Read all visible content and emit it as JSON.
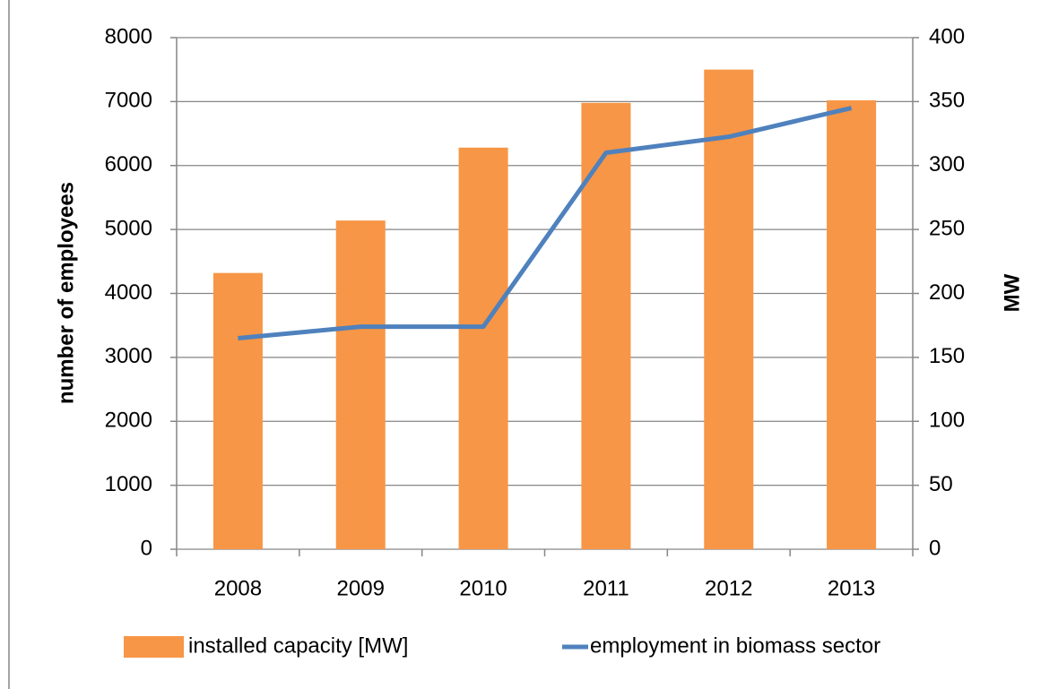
{
  "chart_data": {
    "type": "bar",
    "categories": [
      "2008",
      "2009",
      "2010",
      "2011",
      "2012",
      "2013"
    ],
    "series": [
      {
        "name": "installed capacity [MW]",
        "type": "bar",
        "color": "#f79646",
        "axis": "y2",
        "values": [
          216,
          257,
          314,
          349,
          375,
          351
        ]
      },
      {
        "name": "employment in biomass sector",
        "type": "line",
        "color": "#4f81bd",
        "axis": "y",
        "values": [
          3300,
          3480,
          3480,
          6200,
          6450,
          6900
        ]
      }
    ],
    "ylabel": "number of employees",
    "y2label": "MW",
    "ylim": [
      0,
      8000
    ],
    "yticks": [
      0,
      1000,
      2000,
      3000,
      4000,
      5000,
      6000,
      7000,
      8000
    ],
    "y2lim": [
      0,
      400
    ],
    "y2ticks": [
      0,
      50,
      100,
      150,
      200,
      250,
      300,
      350,
      400
    ],
    "grid": true,
    "legend": "bottom"
  }
}
